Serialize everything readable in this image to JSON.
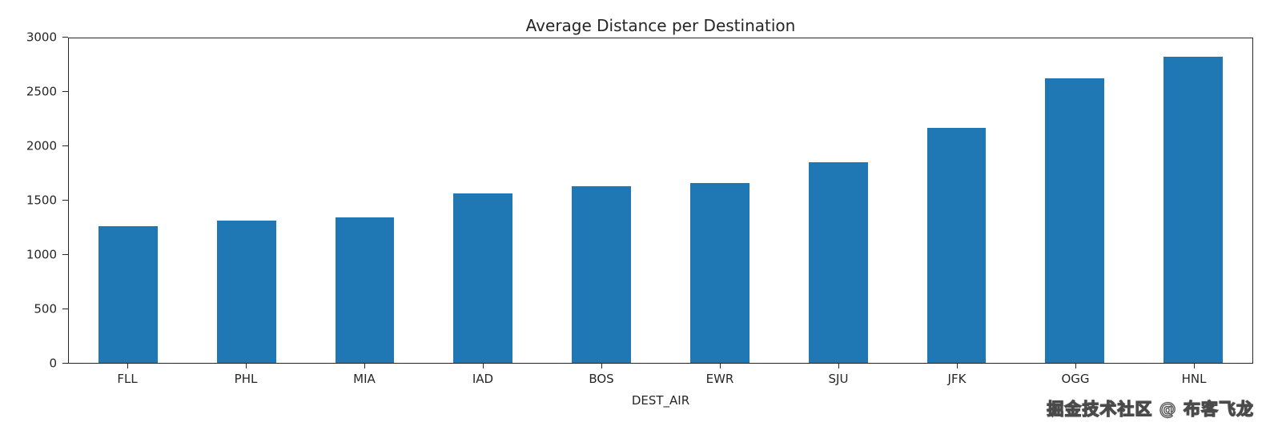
{
  "chart_data": {
    "type": "bar",
    "title": "Average Distance per Destination",
    "xlabel": "DEST_AIR",
    "ylabel": "",
    "categories": [
      "FLL",
      "PHL",
      "MIA",
      "IAD",
      "BOS",
      "EWR",
      "SJU",
      "JFK",
      "OGG",
      "HNL"
    ],
    "values": [
      1265,
      1315,
      1345,
      1565,
      1630,
      1660,
      1855,
      2170,
      2630,
      2830
    ],
    "ylim": [
      0,
      3000
    ],
    "yticks": [
      0,
      500,
      1000,
      1500,
      2000,
      2500,
      3000
    ],
    "bar_color": "#1f77b4",
    "grid": false,
    "legend": "none",
    "spine_color": "#262626"
  },
  "watermark": {
    "text": "掘金技术社区 @ 布客飞龙"
  }
}
